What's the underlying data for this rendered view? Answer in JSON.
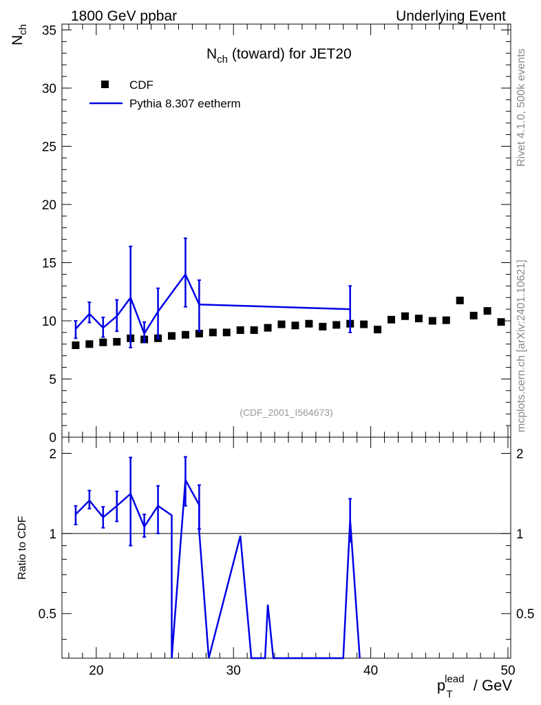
{
  "header": {
    "left": "1800 GeV ppbar",
    "right": "Underlying Event",
    "side_top": "Rivet 4.1.0,  500k events",
    "side_bottom": "mcplots.cern.ch [arXiv:2401.10621]"
  },
  "chart_data": [
    {
      "type": "scatter",
      "title_main": "N",
      "title_sub": "ch",
      "title_rest": " (toward) for JET20",
      "ylabel_main": "N",
      "ylabel_sub": "ch",
      "ylim": [
        0,
        35.5
      ],
      "yticks": [
        0,
        5,
        10,
        15,
        20,
        25,
        30,
        35
      ],
      "xlim": [
        17.5,
        50.2
      ],
      "watermark": "(CDF_2001_I564673)",
      "legend": [
        {
          "label": "CDF",
          "marker": "square",
          "color": "#000000"
        },
        {
          "label": "Pythia 8.307 eetherm",
          "marker": "line",
          "color": "#0000e6"
        }
      ],
      "series": [
        {
          "name": "CDF",
          "x": [
            18.5,
            19.5,
            20.5,
            21.5,
            22.5,
            23.5,
            24.5,
            25.5,
            26.5,
            27.5,
            28.5,
            29.5,
            30.5,
            31.5,
            32.5,
            33.5,
            34.5,
            35.5,
            36.5,
            37.5,
            38.5,
            39.5,
            40.5,
            41.5,
            42.5,
            43.5,
            44.5,
            45.5,
            46.5,
            47.5,
            48.5,
            49.5
          ],
          "y": [
            7.9,
            8.0,
            8.15,
            8.2,
            8.5,
            8.4,
            8.5,
            8.7,
            8.8,
            8.9,
            9.0,
            9.0,
            9.2,
            9.2,
            9.4,
            9.7,
            9.6,
            9.75,
            9.5,
            9.65,
            9.75,
            9.7,
            9.25,
            10.1,
            10.4,
            10.2,
            10.0,
            10.05,
            11.75,
            10.45,
            10.85,
            9.9
          ]
        },
        {
          "name": "Pythia 8.307 eetherm",
          "x": [
            18.5,
            19.5,
            20.5,
            21.5,
            22.5,
            23.5,
            24.5,
            26.5,
            27.5,
            38.5
          ],
          "y": [
            9.3,
            10.6,
            9.4,
            10.4,
            12.0,
            8.9,
            10.8,
            14.0,
            11.4,
            11.0
          ],
          "yerr_low": [
            0.8,
            0.75,
            0.8,
            1.3,
            4.3,
            0.75,
            2.3,
            2.8,
            2.3,
            2.0
          ],
          "yerr_high": [
            0.7,
            1.0,
            0.9,
            1.4,
            4.4,
            1.0,
            2.0,
            3.1,
            2.1,
            2.0
          ]
        }
      ]
    },
    {
      "type": "line",
      "ylabel": "Ratio to CDF",
      "xlabel_main": "p",
      "xlabel_sub": "T",
      "xlabel_sup": "lead",
      "xlabel_rest": " / GeV",
      "xlim": [
        17.5,
        50.2
      ],
      "xticks": [
        20,
        30,
        40,
        50
      ],
      "ylim": [
        0.34,
        2.3
      ],
      "yticks": [
        0.5,
        1,
        2
      ],
      "reference": 1,
      "series": [
        {
          "name": "Pythia 8.307 eetherm / CDF",
          "x": [
            18.5,
            19.5,
            20.5,
            21.5,
            22.5,
            23.5,
            24.5,
            25.5,
            25.5,
            26.5,
            27.5,
            27.5,
            28.2,
            30.5,
            31.3,
            32.3,
            32.5,
            32.9,
            38.0,
            38.5,
            39.2
          ],
          "y": [
            1.18,
            1.33,
            1.15,
            1.27,
            1.41,
            1.06,
            1.27,
            1.17,
            0.3,
            1.59,
            1.28,
            1.02,
            0.3,
            0.98,
            0.3,
            0.3,
            0.54,
            0.3,
            0.3,
            1.13,
            0.3
          ],
          "yerr_idx": [
            0,
            1,
            2,
            3,
            4,
            5,
            6,
            9,
            10,
            19
          ],
          "yerr_low": [
            0.1,
            0.09,
            0.1,
            0.16,
            0.51,
            0.09,
            0.27,
            0.32,
            0.24,
            0.2
          ],
          "yerr_high": [
            0.09,
            0.12,
            0.11,
            0.17,
            0.52,
            0.12,
            0.24,
            0.35,
            0.24,
            0.22
          ]
        }
      ]
    }
  ]
}
